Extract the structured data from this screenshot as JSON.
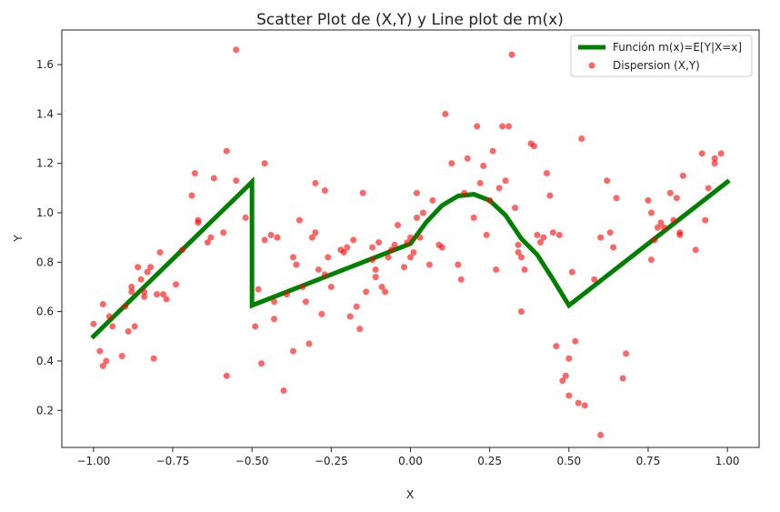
{
  "chart_data": {
    "type": "scatter",
    "title": "Scatter Plot de (X,Y) y Line plot de m(x)",
    "xlabel": "X",
    "ylabel": "Y",
    "xlim": [
      -1.1,
      1.1
    ],
    "ylim": [
      0.05,
      1.74
    ],
    "xticks": [
      -1.0,
      -0.75,
      -0.5,
      -0.25,
      0.0,
      0.25,
      0.5,
      0.75,
      1.0
    ],
    "xtick_labels": [
      "−1.00",
      "−0.75",
      "−0.50",
      "−0.25",
      "0.00",
      "0.25",
      "0.50",
      "0.75",
      "1.00"
    ],
    "yticks": [
      0.2,
      0.4,
      0.6,
      0.8,
      1.0,
      1.2,
      1.4,
      1.6
    ],
    "ytick_labels": [
      "0.2",
      "0.4",
      "0.6",
      "0.8",
      "1.0",
      "1.2",
      "1.4",
      "1.6"
    ],
    "grid": false,
    "legend": {
      "position": "top-right",
      "entries": [
        {
          "label": "Función m(x)=E[Y|X=x]",
          "kind": "line"
        },
        {
          "label": "Dispersion (X,Y)",
          "kind": "marker"
        }
      ]
    },
    "colors": {
      "line": "#008000",
      "scatter": "#ff0000"
    },
    "line": {
      "name": "Función m(x)=E[Y|X=x]",
      "x": [
        -1.0,
        -0.9,
        -0.8,
        -0.7,
        -0.6,
        -0.5,
        -0.5,
        -0.4,
        -0.3,
        -0.2,
        -0.1,
        0.0,
        0.05,
        0.1,
        0.15,
        0.2,
        0.25,
        0.3,
        0.35,
        0.4,
        0.45,
        0.5,
        0.6,
        0.7,
        0.8,
        0.9,
        1.0
      ],
      "y": [
        0.5,
        0.625,
        0.75,
        0.875,
        1.0,
        1.125,
        0.625,
        0.675,
        0.725,
        0.775,
        0.825,
        0.875,
        0.962,
        1.03,
        1.068,
        1.075,
        1.05,
        0.99,
        0.895,
        0.83,
        0.73,
        0.625,
        0.725,
        0.825,
        0.925,
        1.025,
        1.125
      ]
    },
    "scatter": {
      "name": "Dispersion (X,Y)",
      "points": [
        [
          -1.0,
          0.55
        ],
        [
          -0.98,
          0.44
        ],
        [
          -0.97,
          0.63
        ],
        [
          -0.97,
          0.38
        ],
        [
          -0.96,
          0.4
        ],
        [
          -0.95,
          0.58
        ],
        [
          -0.94,
          0.54
        ],
        [
          -0.91,
          0.42
        ],
        [
          -0.9,
          0.62
        ],
        [
          -0.89,
          0.52
        ],
        [
          -0.88,
          0.7
        ],
        [
          -0.88,
          0.68
        ],
        [
          -0.87,
          0.54
        ],
        [
          -0.86,
          0.78
        ],
        [
          -0.85,
          0.73
        ],
        [
          -0.84,
          0.68
        ],
        [
          -0.84,
          0.66
        ],
        [
          -0.83,
          0.76
        ],
        [
          -0.82,
          0.78
        ],
        [
          -0.81,
          0.41
        ],
        [
          -0.8,
          0.67
        ],
        [
          -0.79,
          0.84
        ],
        [
          -0.78,
          0.67
        ],
        [
          -0.77,
          0.65
        ],
        [
          -0.74,
          0.71
        ],
        [
          -0.72,
          0.85
        ],
        [
          -0.69,
          1.07
        ],
        [
          -0.68,
          1.16
        ],
        [
          -0.67,
          0.97
        ],
        [
          -0.67,
          0.96
        ],
        [
          -0.64,
          0.88
        ],
        [
          -0.63,
          0.9
        ],
        [
          -0.62,
          1.14
        ],
        [
          -0.59,
          0.92
        ],
        [
          -0.58,
          1.25
        ],
        [
          -0.58,
          0.34
        ],
        [
          -0.55,
          1.66
        ],
        [
          -0.55,
          1.13
        ],
        [
          -0.52,
          0.98
        ],
        [
          -0.49,
          0.54
        ],
        [
          -0.48,
          0.69
        ],
        [
          -0.47,
          0.39
        ],
        [
          -0.46,
          0.89
        ],
        [
          -0.46,
          1.2
        ],
        [
          -0.44,
          0.91
        ],
        [
          -0.43,
          0.64
        ],
        [
          -0.43,
          0.57
        ],
        [
          -0.42,
          0.9
        ],
        [
          -0.4,
          0.28
        ],
        [
          -0.39,
          0.67
        ],
        [
          -0.37,
          0.44
        ],
        [
          -0.37,
          0.82
        ],
        [
          -0.36,
          0.79
        ],
        [
          -0.35,
          0.97
        ],
        [
          -0.34,
          0.7
        ],
        [
          -0.33,
          0.64
        ],
        [
          -0.32,
          0.47
        ],
        [
          -0.31,
          0.9
        ],
        [
          -0.3,
          0.92
        ],
        [
          -0.3,
          1.12
        ],
        [
          -0.29,
          0.77
        ],
        [
          -0.28,
          0.59
        ],
        [
          -0.27,
          0.75
        ],
        [
          -0.27,
          1.09
        ],
        [
          -0.26,
          0.82
        ],
        [
          -0.25,
          0.7
        ],
        [
          -0.22,
          0.85
        ],
        [
          -0.21,
          0.84
        ],
        [
          -0.2,
          0.86
        ],
        [
          -0.19,
          0.58
        ],
        [
          -0.18,
          0.89
        ],
        [
          -0.17,
          0.62
        ],
        [
          -0.16,
          0.53
        ],
        [
          -0.15,
          1.08
        ],
        [
          -0.14,
          0.68
        ],
        [
          -0.12,
          0.86
        ],
        [
          -0.12,
          0.81
        ],
        [
          -0.11,
          0.74
        ],
        [
          -0.11,
          0.77
        ],
        [
          -0.1,
          0.88
        ],
        [
          -0.09,
          0.7
        ],
        [
          -0.08,
          0.68
        ],
        [
          -0.07,
          0.82
        ],
        [
          -0.06,
          0.85
        ],
        [
          -0.05,
          0.87
        ],
        [
          -0.04,
          0.95
        ],
        [
          -0.02,
          0.78
        ],
        [
          -0.01,
          0.88
        ],
        [
          0.0,
          0.9
        ],
        [
          0.0,
          0.82
        ],
        [
          0.01,
          0.84
        ],
        [
          0.02,
          1.08
        ],
        [
          0.02,
          0.98
        ],
        [
          0.03,
          0.9
        ],
        [
          0.04,
          1.0
        ],
        [
          0.06,
          0.79
        ],
        [
          0.07,
          1.05
        ],
        [
          0.09,
          0.87
        ],
        [
          0.1,
          0.86
        ],
        [
          0.11,
          1.4
        ],
        [
          0.13,
          1.2
        ],
        [
          0.15,
          0.79
        ],
        [
          0.16,
          0.73
        ],
        [
          0.17,
          1.08
        ],
        [
          0.18,
          1.22
        ],
        [
          0.2,
          0.98
        ],
        [
          0.21,
          1.35
        ],
        [
          0.22,
          1.12
        ],
        [
          0.23,
          1.19
        ],
        [
          0.24,
          0.91
        ],
        [
          0.25,
          1.05
        ],
        [
          0.26,
          1.25
        ],
        [
          0.27,
          0.77
        ],
        [
          0.28,
          1.1
        ],
        [
          0.29,
          1.35
        ],
        [
          0.3,
          1.13
        ],
        [
          0.31,
          1.35
        ],
        [
          0.32,
          1.64
        ],
        [
          0.33,
          1.02
        ],
        [
          0.34,
          0.87
        ],
        [
          0.34,
          0.84
        ],
        [
          0.35,
          0.82
        ],
        [
          0.35,
          0.6
        ],
        [
          0.36,
          0.77
        ],
        [
          0.38,
          1.28
        ],
        [
          0.39,
          1.27
        ],
        [
          0.4,
          0.91
        ],
        [
          0.41,
          0.88
        ],
        [
          0.42,
          0.9
        ],
        [
          0.43,
          1.16
        ],
        [
          0.44,
          1.07
        ],
        [
          0.45,
          0.92
        ],
        [
          0.46,
          0.46
        ],
        [
          0.47,
          0.91
        ],
        [
          0.48,
          0.32
        ],
        [
          0.49,
          0.34
        ],
        [
          0.5,
          0.41
        ],
        [
          0.5,
          0.26
        ],
        [
          0.51,
          0.76
        ],
        [
          0.52,
          0.48
        ],
        [
          0.53,
          0.23
        ],
        [
          0.54,
          1.3
        ],
        [
          0.55,
          0.22
        ],
        [
          0.58,
          0.73
        ],
        [
          0.6,
          0.9
        ],
        [
          0.6,
          0.1
        ],
        [
          0.62,
          1.13
        ],
        [
          0.63,
          0.92
        ],
        [
          0.64,
          0.86
        ],
        [
          0.65,
          1.06
        ],
        [
          0.67,
          0.33
        ],
        [
          0.68,
          0.43
        ],
        [
          0.75,
          1.05
        ],
        [
          0.76,
          1.0
        ],
        [
          0.76,
          0.81
        ],
        [
          0.77,
          0.89
        ],
        [
          0.78,
          0.94
        ],
        [
          0.79,
          0.96
        ],
        [
          0.8,
          0.94
        ],
        [
          0.82,
          1.08
        ],
        [
          0.83,
          0.97
        ],
        [
          0.84,
          1.06
        ],
        [
          0.85,
          0.91
        ],
        [
          0.85,
          0.92
        ],
        [
          0.86,
          1.15
        ],
        [
          0.9,
          0.85
        ],
        [
          0.92,
          1.24
        ],
        [
          0.93,
          0.97
        ],
        [
          0.94,
          1.1
        ],
        [
          0.96,
          1.2
        ],
        [
          0.96,
          1.22
        ],
        [
          0.98,
          1.24
        ]
      ]
    }
  }
}
